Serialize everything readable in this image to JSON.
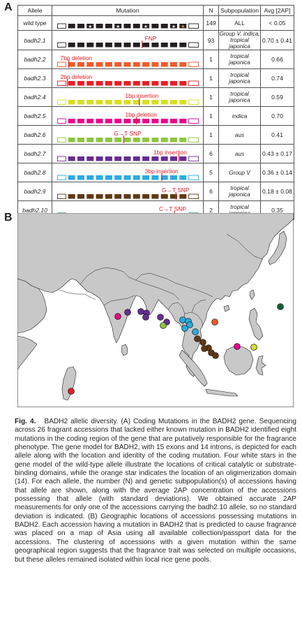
{
  "panel_a": {
    "letter": "A",
    "headers": {
      "allele": "Allele",
      "mutation": "Mutation",
      "n": "N",
      "subpopulation": "Subpopulation",
      "avg": "Avg [2AP]"
    },
    "rows": [
      {
        "allele": "wild type",
        "mutation_label": "",
        "n": "149",
        "subpopulation": "ALL",
        "avg": "< 0.05",
        "color": "#231f20"
      },
      {
        "allele": "badh2.1",
        "mutation_label": "FNP",
        "n": "93",
        "subpopulation": "Group V, indica, tropical japonica",
        "avg": "0.70 ± 0.41",
        "color": "#231f20"
      },
      {
        "allele": "badh2.2",
        "mutation_label": "7bp deletion",
        "n": "1",
        "subpopulation": "tropical japonica",
        "avg": "0.66",
        "color": "#f15a29"
      },
      {
        "allele": "badh2.3",
        "mutation_label": "2bp deletion",
        "n": "1",
        "subpopulation": "tropical japonica",
        "avg": "0.74",
        "color": "#ed1c24"
      },
      {
        "allele": "badh2.4",
        "mutation_label": "1bp insertion",
        "n": "1",
        "subpopulation": "tropical japonica",
        "avg": "0.59",
        "color": "#d7df23"
      },
      {
        "allele": "badh2.5",
        "mutation_label": "1bp deletion",
        "n": "1",
        "subpopulation": "indica",
        "avg": "0.70",
        "color": "#ec008c"
      },
      {
        "allele": "badh2.6",
        "mutation_label": "G→T SNP",
        "n": "1",
        "subpopulation": "aus",
        "avg": "0.41",
        "color": "#8dc63f"
      },
      {
        "allele": "badh2.7",
        "mutation_label": "1bp insertion",
        "n": "6",
        "subpopulation": "aus",
        "avg": "0.43 ± 0.17",
        "color": "#662d91"
      },
      {
        "allele": "badh2.8",
        "mutation_label": "3bp insertion",
        "n": "5",
        "subpopulation": "Group V",
        "avg": "0.36 ± 0.14",
        "color": "#29abe2"
      },
      {
        "allele": "badh2.9",
        "mutation_label": "G→T SNP",
        "n": "6",
        "subpopulation": "tropical japonica",
        "avg": "0.18 ± 0.08",
        "color": "#603813"
      },
      {
        "allele": "badh2.10",
        "mutation_label": "C→T SNP",
        "n": "2",
        "subpopulation": "tropical japonica",
        "avg": "0.35",
        "color": "#006838"
      }
    ]
  },
  "panel_b": {
    "letter": "B",
    "land_color": "#c8c8c8",
    "water_color": "#ffffff",
    "accessions": [
      {
        "allele": "badh2.2",
        "color": "#f15a29"
      },
      {
        "allele": "badh2.3",
        "color": "#ed1c24"
      },
      {
        "allele": "badh2.4",
        "color": "#d7df23"
      },
      {
        "allele": "badh2.5",
        "color": "#ec008c"
      },
      {
        "allele": "badh2.6",
        "color": "#8dc63f"
      },
      {
        "allele": "badh2.7",
        "color": "#662d91"
      },
      {
        "allele": "badh2.8",
        "color": "#29abe2"
      },
      {
        "allele": "badh2.9",
        "color": "#603813"
      },
      {
        "allele": "badh2.10",
        "color": "#006838"
      }
    ]
  },
  "caption": {
    "fig_label": "Fig. 4.",
    "text": "BADH2 allelic diversity. (A) Coding Mutations in the BADH2 gene. Sequencing across 26 fragrant accessions that lacked either known mutation in BADH2 identified eight mutations in the coding region of the gene that are putatively responsible for the fragrance phenotype. The gene model for BADH2, with 15 exons and 14 introns, is depicted for each allele along with the location and identity of the coding mutation. Four white stars in the gene model of the wild-type allele illustrate the locations of critical catalytic or substrate-binding domains, while the orange star indicates the location of an oligimerization domain (14). For each allele, the number (N) and genetic subpopulation(s) of accessions having that allele are shown, along with the average 2AP concentration of the accessions possessing that allele (with standard deviations). We obtained accurate 2AP measurements for only one of the accessions carrying the badh2.10 allele, so no standard deviation is indicated. (B) Geographic locations of accessions possessing mutations in BADH2. Each accession having a mutation in BADH2 that is predicted to cause fragrance was placed on a map of Asia using all available collection/passport data for the accessions. The clustering of accessions with a given mutation within the same geographical region suggests that the fragrance trait was selected on multiple occasions, but these alleles remained isolated within local rice gene pools."
  }
}
